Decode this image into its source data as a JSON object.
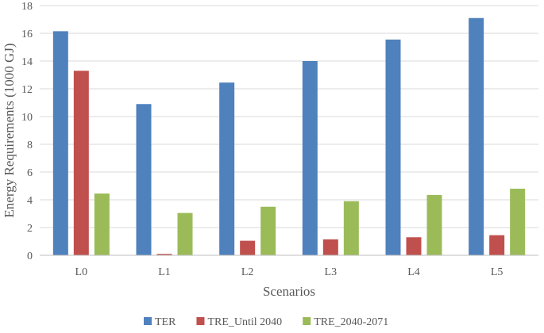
{
  "chart_data": {
    "type": "bar",
    "title": "",
    "xlabel": "Scenarios",
    "ylabel": "Energy Requirements (1000 GJ)",
    "ylim": [
      0,
      18
    ],
    "yticks": [
      0,
      2,
      4,
      6,
      8,
      10,
      12,
      14,
      16,
      18
    ],
    "grid": true,
    "legend_position": "bottom",
    "categories": [
      "L0",
      "L1",
      "L2",
      "L3",
      "L4",
      "L5"
    ],
    "series": [
      {
        "name": "TER",
        "color": "#4f81bd",
        "values": [
          16.15,
          10.9,
          12.45,
          14.0,
          15.55,
          17.1
        ]
      },
      {
        "name": "TRE_Until 2040",
        "color": "#c0504d",
        "values": [
          13.3,
          0.1,
          1.05,
          1.15,
          1.3,
          1.45
        ]
      },
      {
        "name": "TRE_2040-2071",
        "color": "#9bbb59",
        "values": [
          4.45,
          3.05,
          3.5,
          3.9,
          4.35,
          4.8
        ]
      }
    ]
  }
}
